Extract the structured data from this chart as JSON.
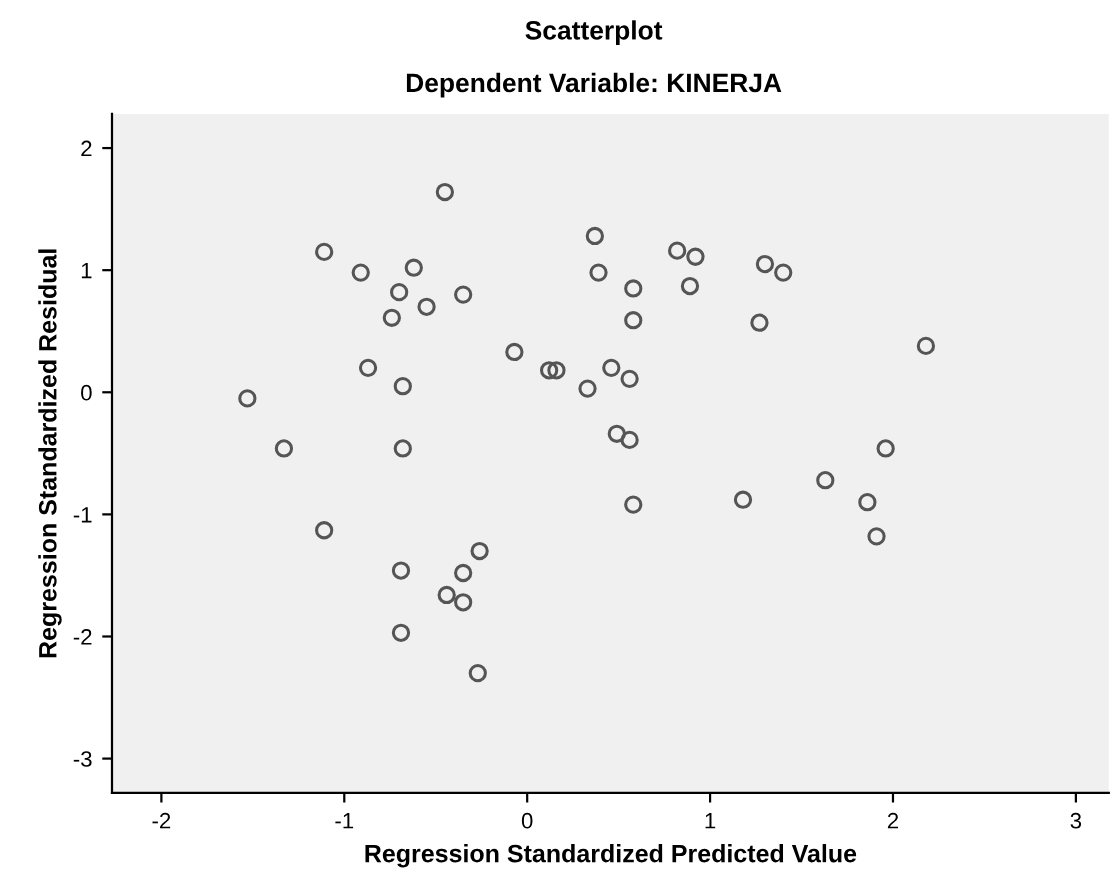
{
  "chart_data": {
    "type": "scatter",
    "title": "Scatterplot",
    "subtitle": "Dependent Variable: KINERJA",
    "xlabel": "Regression Standardized Predicted Value",
    "ylabel": "Regression Standardized Residual",
    "x": [
      -0.45,
      -1.11,
      -0.91,
      -0.62,
      -0.7,
      -0.55,
      -0.35,
      -0.74,
      -0.07,
      0.12,
      0.16,
      0.33,
      -0.87,
      -0.68,
      -1.53,
      -1.33,
      -0.68,
      0.37,
      0.39,
      0.82,
      0.92,
      0.58,
      0.89,
      1.3,
      1.4,
      0.58,
      1.27,
      2.18,
      0.46,
      0.56,
      0.49,
      0.56,
      1.96,
      0.58,
      1.18,
      1.63,
      1.86,
      1.91,
      -1.11,
      -0.69,
      -0.26,
      -0.35,
      -0.44,
      -0.35,
      -0.69,
      -0.27
    ],
    "values": [
      1.64,
      1.15,
      0.98,
      1.02,
      0.82,
      0.7,
      0.8,
      0.61,
      0.33,
      0.18,
      0.18,
      0.03,
      0.2,
      0.05,
      -0.05,
      -0.46,
      -0.46,
      1.28,
      0.98,
      1.16,
      1.11,
      0.85,
      0.87,
      1.05,
      0.98,
      0.59,
      0.57,
      0.38,
      0.2,
      0.11,
      -0.34,
      -0.39,
      -0.46,
      -0.92,
      -0.88,
      -0.72,
      -0.9,
      -1.18,
      -1.13,
      -1.46,
      -1.3,
      -1.48,
      -1.66,
      -1.72,
      -1.97,
      -2.3
    ],
    "color": "#555555",
    "marker": "circle",
    "xlim": [
      -2.27,
      3.18
    ],
    "ylim": [
      -3.28,
      2.28
    ],
    "xticks": [
      -2,
      -1,
      0,
      1,
      2,
      3
    ],
    "yticks": [
      -3,
      -2,
      -1,
      0,
      1,
      2
    ],
    "grid": false
  }
}
